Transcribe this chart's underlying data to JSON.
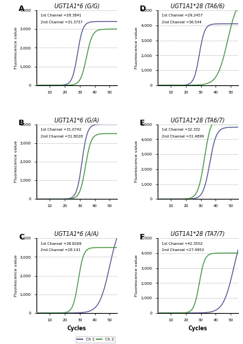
{
  "subplots": [
    {
      "label": "A",
      "title": "UGT1A1*6 (G/G)",
      "ch1_ct": 28.3841,
      "ch2_ct": 31.3737,
      "ch1_midpoint": 28.5,
      "ch2_midpoint": 34.5,
      "ch1_scale": 1.8,
      "ch2_scale": 2.0,
      "ch1_max": 3400,
      "ch2_max": 3000,
      "ylim": [
        0,
        4000
      ],
      "yticks": [
        0,
        1000,
        2000,
        3000,
        4000
      ],
      "ytick_labels": [
        "0",
        "1,000",
        "2,000",
        "3,000",
        "4,000"
      ],
      "show_ylabel": true,
      "show_xlabel": false
    },
    {
      "label": "B",
      "title": "UGT1A1*6 (G/A)",
      "ch1_ct": 31.0742,
      "ch2_ct": 31.8028,
      "ch1_midpoint": 31.5,
      "ch2_midpoint": 33.8,
      "ch1_scale": 1.8,
      "ch2_scale": 1.9,
      "ch1_max": 4000,
      "ch2_max": 3500,
      "ylim": [
        0,
        4000
      ],
      "yticks": [
        0,
        1000,
        2000,
        3000,
        4000
      ],
      "ytick_labels": [
        "0",
        "1,000",
        "2,000",
        "3,000",
        "4,000"
      ],
      "show_ylabel": true,
      "show_xlabel": false
    },
    {
      "label": "C",
      "title": "UGT1A1*6 (A/A)",
      "ch1_ct": 38.8269,
      "ch2_ct": 28.141,
      "ch1_midpoint": 50.0,
      "ch2_midpoint": 29.0,
      "ch1_scale": 3.5,
      "ch2_scale": 1.8,
      "ch1_max": 5000,
      "ch2_max": 3500,
      "ylim": [
        0,
        4000
      ],
      "yticks": [
        0,
        1000,
        2000,
        3000,
        4000
      ],
      "ytick_labels": [
        "0",
        "1,000",
        "2,000",
        "3,000",
        "4,000"
      ],
      "show_ylabel": true,
      "show_xlabel": true,
      "show_legend": true
    },
    {
      "label": "D",
      "title": "UGT1A1*28 (TA6/6)",
      "ch1_ct": 29.2457,
      "ch2_ct": 36.544,
      "ch1_midpoint": 29.0,
      "ch2_midpoint": 48.0,
      "ch1_scale": 1.8,
      "ch2_scale": 3.5,
      "ch1_max": 4100,
      "ch2_max": 6000,
      "ylim": [
        0,
        5000
      ],
      "yticks": [
        0,
        1000,
        2000,
        3000,
        4000,
        5000
      ],
      "ytick_labels": [
        "0",
        "1,000",
        "2,000",
        "3,000",
        "4,000",
        "5,000"
      ],
      "show_ylabel": true,
      "show_xlabel": false
    },
    {
      "label": "E",
      "title": "UGT1A1*28 (TA6/7)",
      "ch1_ct": 32.332,
      "ch2_ct": 31.4899,
      "ch1_midpoint": 36.0,
      "ch2_midpoint": 32.5,
      "ch1_scale": 2.2,
      "ch2_scale": 2.2,
      "ch1_max": 4800,
      "ch2_max": 5500,
      "ylim": [
        0,
        5000
      ],
      "yticks": [
        0,
        1000,
        2000,
        3000,
        4000,
        5000
      ],
      "ytick_labels": [
        "0",
        "1,000",
        "2,000",
        "3,000",
        "4,000",
        "5,000"
      ],
      "show_ylabel": true,
      "show_xlabel": false
    },
    {
      "label": "F",
      "title": "UGT1A1*28 (TA7/7)",
      "ch1_ct": 42.3552,
      "ch2_ct": 27.4953,
      "ch1_midpoint": 52.0,
      "ch2_midpoint": 29.0,
      "ch1_scale": 3.5,
      "ch2_scale": 1.8,
      "ch1_max": 6000,
      "ch2_max": 4000,
      "ylim": [
        0,
        5000
      ],
      "yticks": [
        0,
        1000,
        2000,
        3000,
        4000,
        5000
      ],
      "ytick_labels": [
        "0",
        "1,000",
        "2,000",
        "3,000",
        "4,000",
        "5,000"
      ],
      "show_ylabel": true,
      "show_xlabel": true
    }
  ],
  "ch1_color": "#4f4f8f",
  "ch2_color": "#3a8f3a",
  "xlim": [
    1,
    55
  ],
  "xticks": [
    10,
    20,
    30,
    40,
    50
  ],
  "xlabel": "Cycles",
  "ylabel": "Fluorescence value",
  "background": "#ffffff",
  "legend_labels": [
    "Ch 1",
    "Ch 2"
  ]
}
